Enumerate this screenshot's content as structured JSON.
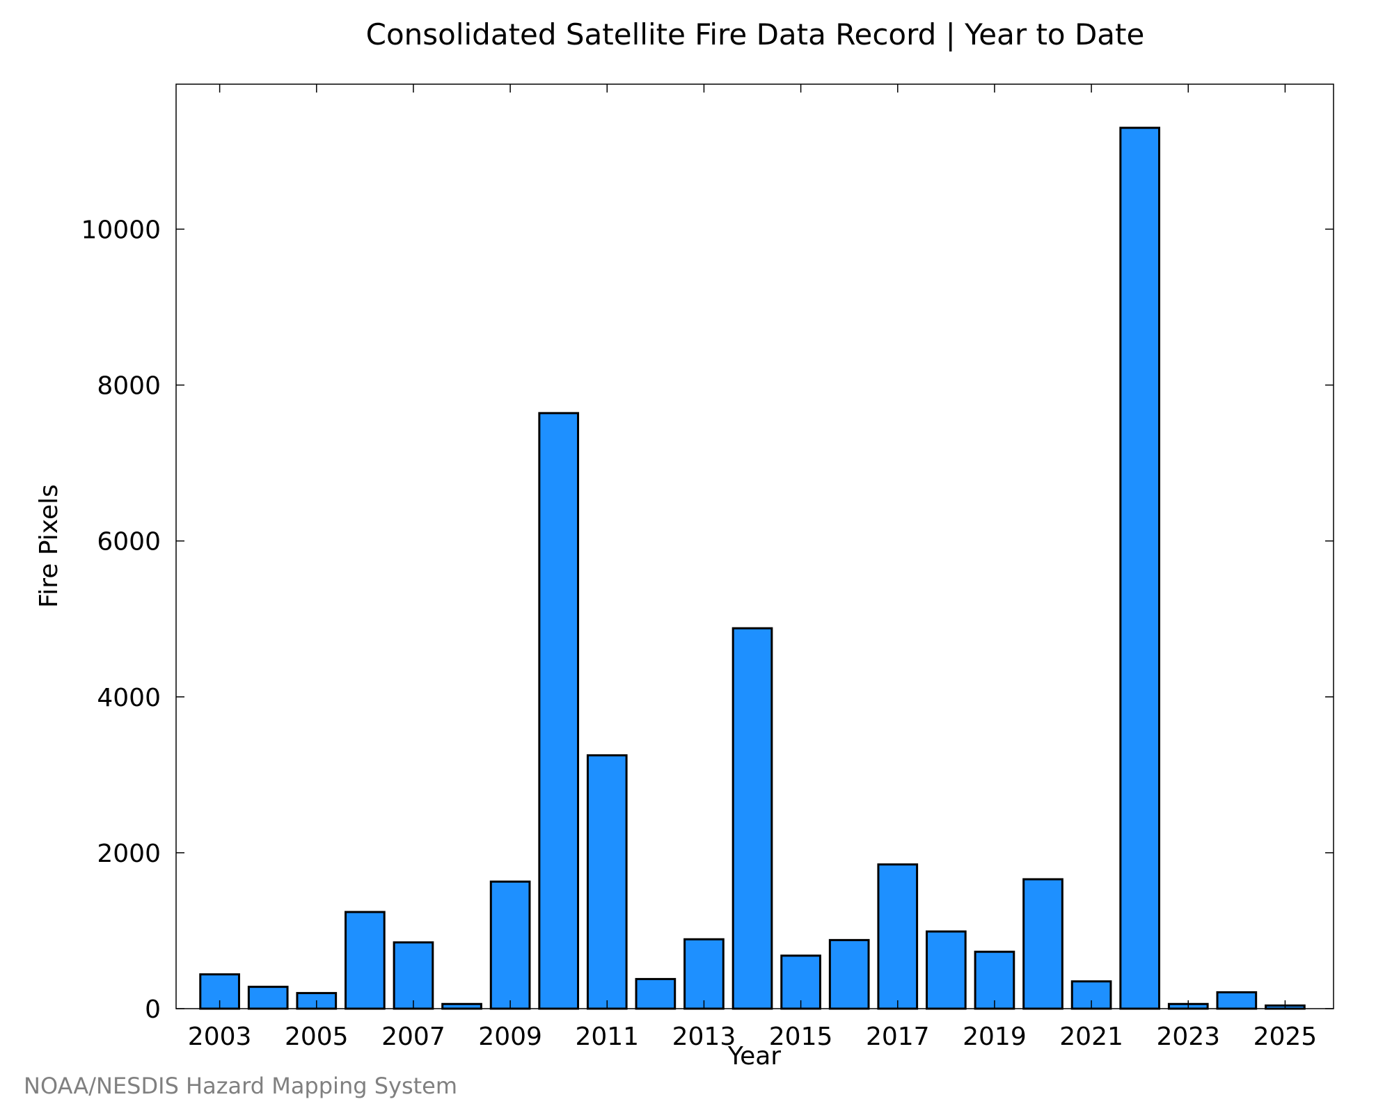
{
  "chart_data": {
    "type": "bar",
    "title": "Consolidated Satellite Fire Data Record | Year to Date",
    "xlabel": "Year",
    "ylabel": "Fire Pixels",
    "categories": [
      "2003",
      "2004",
      "2005",
      "2006",
      "2007",
      "2008",
      "2009",
      "2010",
      "2011",
      "2012",
      "2013",
      "2014",
      "2015",
      "2016",
      "2017",
      "2018",
      "2019",
      "2020",
      "2021",
      "2022",
      "2023",
      "2024",
      "2025"
    ],
    "values": [
      440,
      280,
      200,
      1240,
      850,
      60,
      1630,
      7640,
      3250,
      380,
      890,
      4880,
      680,
      880,
      1850,
      990,
      730,
      1660,
      350,
      11300,
      60,
      210,
      40
    ],
    "ylim": [
      0,
      11860
    ],
    "xlim": [
      2002.1,
      2026
    ],
    "yticks": [
      0,
      2000,
      4000,
      6000,
      8000,
      10000
    ],
    "xticks": [
      2003,
      2005,
      2007,
      2009,
      2011,
      2013,
      2015,
      2017,
      2019,
      2021,
      2023,
      2025
    ],
    "xtick_labels": [
      "2003",
      "2005",
      "2007",
      "2009",
      "2011",
      "2013",
      "2015",
      "2017",
      "2019",
      "2021",
      "2023",
      "2025"
    ],
    "ytick_labels": [
      "0",
      "2000",
      "4000",
      "6000",
      "8000",
      "10000"
    ],
    "bar_color": "#1e90ff",
    "grid": false,
    "legend": "none"
  },
  "credit": "NOAA/NESDIS Hazard Mapping System"
}
